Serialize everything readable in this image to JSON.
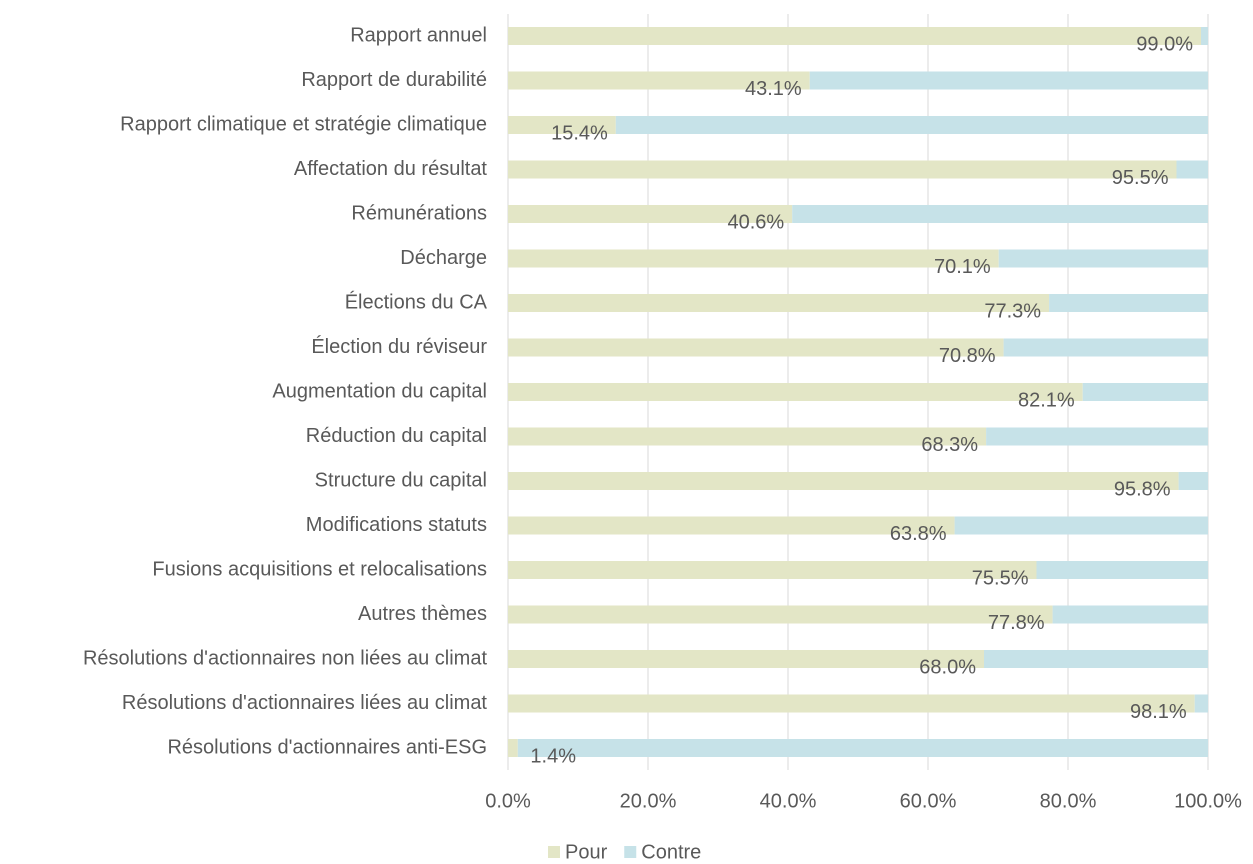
{
  "chart_data": {
    "type": "stacked_bar_horizontal",
    "categories": [
      "Rapport annuel",
      "Rapport de durabilité",
      "Rapport climatique et stratégie climatique",
      "Affectation du résultat",
      "Rémunérations",
      "Décharge",
      "Élections du CA",
      "Élection du réviseur",
      "Augmentation du capital",
      "Réduction du capital",
      "Structure du capital",
      "Modifications statuts",
      "Fusions acquisitions et relocalisations",
      "Autres thèmes",
      "Résolutions d'actionnaires non liées au climat",
      "Résolutions d'actionnaires liées au climat",
      "Résolutions d'actionnaires anti-ESG"
    ],
    "series": [
      {
        "name": "Pour",
        "color": "#e3e6c6",
        "values": [
          99.0,
          43.1,
          15.4,
          95.5,
          40.6,
          70.1,
          77.3,
          70.8,
          82.1,
          68.3,
          95.8,
          63.8,
          75.5,
          77.8,
          68.0,
          98.1,
          1.4
        ],
        "value_labels": [
          "99.0%",
          "43.1%",
          "15.4%",
          "95.5%",
          "40.6%",
          "70.1%",
          "77.3%",
          "70.8%",
          "82.1%",
          "68.3%",
          "95.8%",
          "63.8%",
          "75.5%",
          "77.8%",
          "68.0%",
          "98.1%",
          "1.4%"
        ]
      },
      {
        "name": "Contre",
        "color": "#c6e2e8",
        "values": [
          1.0,
          56.9,
          84.6,
          4.5,
          59.4,
          29.9,
          22.7,
          29.2,
          17.9,
          31.7,
          4.2,
          36.2,
          24.5,
          22.2,
          32.0,
          1.9,
          98.6
        ]
      }
    ],
    "xlim": [
      0,
      100
    ],
    "xticks": [
      {
        "value": 0,
        "label": "0.0%"
      },
      {
        "value": 20,
        "label": "20.0%"
      },
      {
        "value": 40,
        "label": "40.0%"
      },
      {
        "value": 60,
        "label": "60.0%"
      },
      {
        "value": 80,
        "label": "80.0%"
      },
      {
        "value": 100,
        "label": "100.0%"
      }
    ],
    "grid": true,
    "legend": "bottom"
  }
}
